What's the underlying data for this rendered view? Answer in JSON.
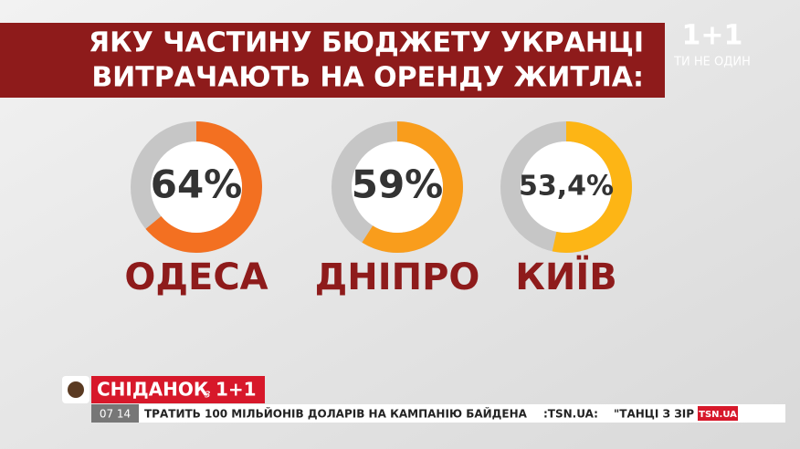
{
  "header": {
    "title": [
      "ЯКУ ЧАСТИНУ БЮДЖЕТУ УКРАНЦІ",
      "ВИТРАЧАЮТЬ НА ОРЕНДУ ЖИТЛА:"
    ],
    "logo": "1+1",
    "slogan": "ТИ НЕ ОДИН"
  },
  "chart_data": [
    {
      "type": "donut",
      "title": "ОДЕСА",
      "values": [
        64
      ],
      "value_labels": [
        "64%"
      ],
      "color": "#f37021"
    },
    {
      "type": "donut",
      "title": "ДНІПРО",
      "values": [
        59
      ],
      "value_labels": [
        "59%"
      ],
      "color": "#f99d1c"
    },
    {
      "type": "donut",
      "title": "КИЇВ",
      "values": [
        53.4
      ],
      "value_labels": [
        "53,4%"
      ],
      "color": "#fdb515"
    }
  ],
  "ticker": {
    "show": "СНІДАНОК",
    "show_with": "з",
    "show_channel": "1+1",
    "time": "07 14",
    "items": [
      "ТРАТИТЬ 100 МІЛЬЙОНІВ ДОЛАРІВ НА КАМПАНІЮ БАЙДЕНА",
      ":TSN.UA:",
      "\"ТАНЦІ З ЗІР"
    ],
    "source": "TSN.UA"
  }
}
